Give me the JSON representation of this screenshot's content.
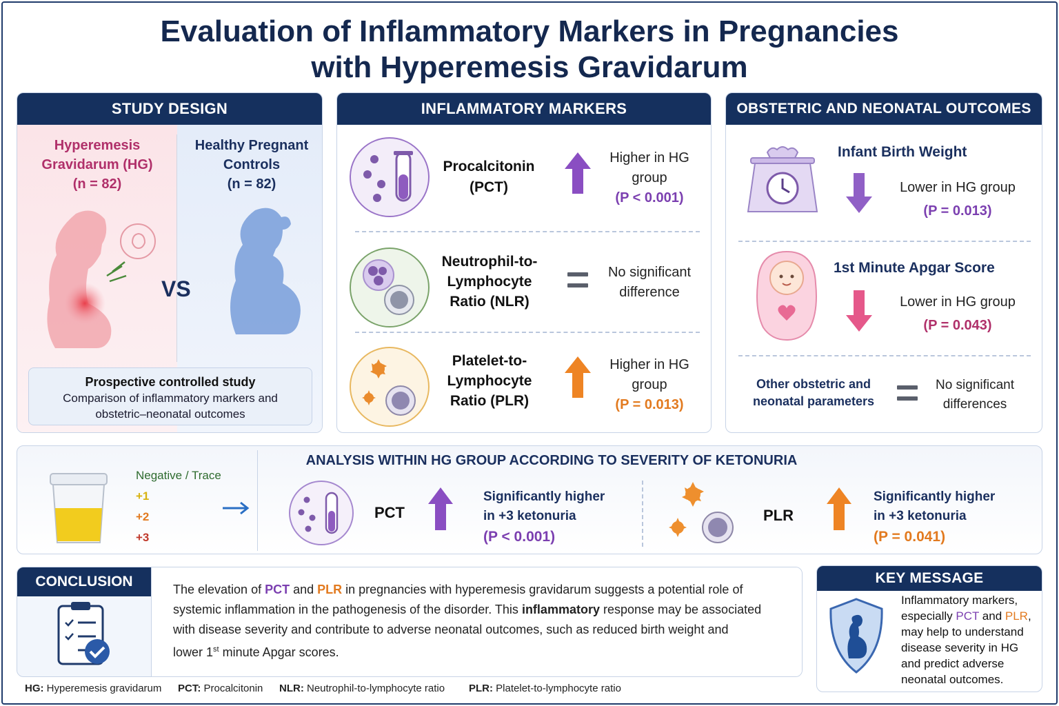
{
  "title_line1": "Evaluation of Inflammatory Markers in Pregnancies",
  "title_line2": "with Hyperemesis Gravidarum",
  "study_design": {
    "header": "STUDY DESIGN",
    "hg_line1": "Hyperemesis",
    "hg_line2": "Gravidarum (HG)",
    "hg_n": "(n = 82)",
    "control_line1": "Healthy Pregnant",
    "control_line2": "Controls",
    "control_n": "(n = 82)",
    "vs": "VS",
    "box_title": "Prospective controlled study",
    "box_line1": "Comparison of inflammatory markers and",
    "box_line2": "obstetric–neonatal outcomes"
  },
  "markers": {
    "header": "INFLAMMATORY MARKERS",
    "pct_name1": "Procalcitonin",
    "pct_name2": "(PCT)",
    "pct_res1": "Higher in HG",
    "pct_res2": "group",
    "pct_p": "(P < 0.001)",
    "nlr_name1": "Neutrophil-to-",
    "nlr_name2": "Lymphocyte",
    "nlr_name3": "Ratio (NLR)",
    "nlr_res1": "No significant",
    "nlr_res2": "difference",
    "plr_name1": "Platelet-to-",
    "plr_name2": "Lymphocyte",
    "plr_name3": "Ratio (PLR)",
    "plr_res1": "Higher in HG",
    "plr_res2": "group",
    "plr_p": "(P = 0.013)"
  },
  "outcomes": {
    "header": "OBSTETRIC AND NEONATAL OUTCOMES",
    "bw_title": "Infant Birth Weight",
    "bw_res": "Lower in HG group",
    "bw_p": "(P = 0.013)",
    "apgar_title": "1st Minute Apgar Score",
    "apgar_res": "Lower in HG group",
    "apgar_p": "(P = 0.043)",
    "other1": "Other obstetric and",
    "other2": "neonatal parameters",
    "other_res1": "No significant",
    "other_res2": "differences"
  },
  "ketonuria": {
    "header": "ANALYSIS WITHIN HG GROUP ACCORDING TO SEVERITY OF KETONURIA",
    "levels": [
      "Negative / Trace",
      "+1",
      "+2",
      "+3"
    ],
    "pct_label": "PCT",
    "pct_res1": "Significantly higher",
    "pct_res2": "in +3 ketonuria",
    "pct_p": "(P < 0.001)",
    "plr_label": "PLR",
    "plr_res1": "Significantly higher",
    "plr_res2": "in +3 ketonuria",
    "plr_p": "(P = 0.041)"
  },
  "conclusion": {
    "header": "CONCLUSION",
    "t1": "The elevation of ",
    "pct": "PCT",
    "t2": " and ",
    "plr": "PLR",
    "t3": " in pregnancies with hyperemesis gravidarum suggests a potential role of",
    "t4": "systemic inflammation in the pathogenesis of the disorder. This ",
    "inflammatory": "inflammatory",
    "t5": " response may be associated",
    "t6": "with disease severity and contribute to adverse neonatal outcomes, such as reduced birth weight and",
    "t7": "lower 1",
    "sup": "st",
    "t8": " minute Apgar scores."
  },
  "key_message": {
    "header": "KEY MESSAGE",
    "l1": "Inflammatory markers,",
    "l2a": "especially ",
    "pct": "PCT",
    "l2b": " and ",
    "plr": "PLR",
    "l2c": ",",
    "l3": "may help to understand",
    "l4": "disease severity in HG",
    "l5": "and predict adverse",
    "l6": "neonatal outcomes."
  },
  "footnotes": [
    {
      "abbr": "HG:",
      "text": " Hyperemesis gravidarum"
    },
    {
      "abbr": "PCT:",
      "text": " Procalcitonin"
    },
    {
      "abbr": "NLR:",
      "text": " Neutrophil-to-lymphocyte ratio"
    },
    {
      "abbr": "PLR:",
      "text": " Platelet-to-lymphocyte ratio"
    }
  ],
  "colors": {
    "navy": "#15305e",
    "purple": "#7b3fb0",
    "orange": "#e27a1f",
    "magenta": "#b0306a",
    "green": "#2e6b2e"
  },
  "icons": [
    "pregnant-woman-nauseous-icon",
    "pregnant-woman-icon",
    "test-tube-icon",
    "neutrophil-icon",
    "platelet-icon",
    "scale-icon",
    "baby-icon",
    "urine-cup-icon",
    "clipboard-check-icon",
    "shield-icon"
  ]
}
